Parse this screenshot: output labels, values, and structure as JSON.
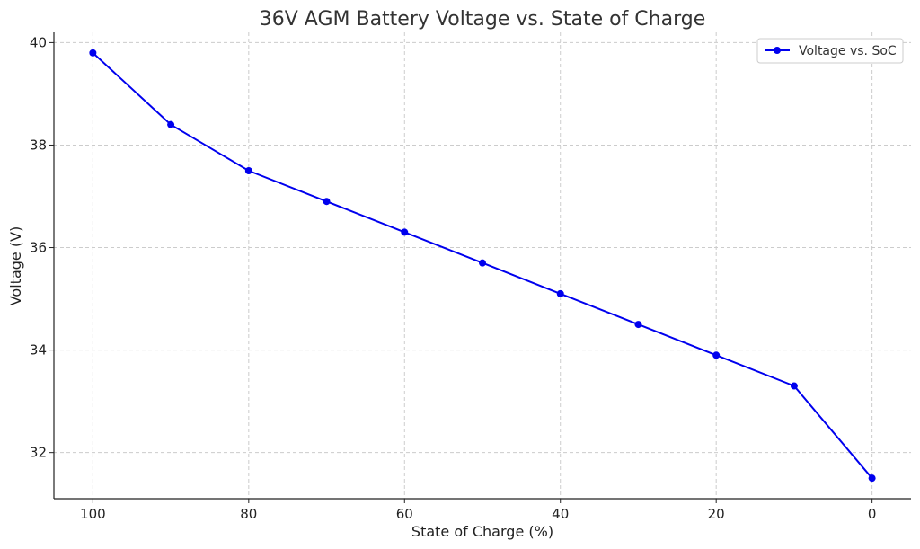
{
  "chart_data": {
    "type": "line",
    "title": "36V AGM Battery Voltage vs. State of Charge",
    "xlabel": "State of Charge (%)",
    "ylabel": "Voltage (V)",
    "xlim": [
      105,
      -5
    ],
    "ylim": [
      31.1,
      40.2
    ],
    "x_reversed": true,
    "xticks": [
      100,
      80,
      60,
      40,
      20,
      0
    ],
    "yticks": [
      32,
      34,
      36,
      38,
      40
    ],
    "grid": true,
    "legend_position": "top-right",
    "series": [
      {
        "name": "Voltage vs. SoC",
        "color": "#0000ee",
        "marker": "circle",
        "x": [
          100,
          90,
          80,
          70,
          60,
          50,
          40,
          30,
          20,
          10,
          0
        ],
        "y": [
          39.8,
          38.4,
          37.5,
          36.9,
          36.3,
          35.7,
          35.1,
          34.5,
          33.9,
          33.3,
          31.5
        ]
      }
    ]
  }
}
